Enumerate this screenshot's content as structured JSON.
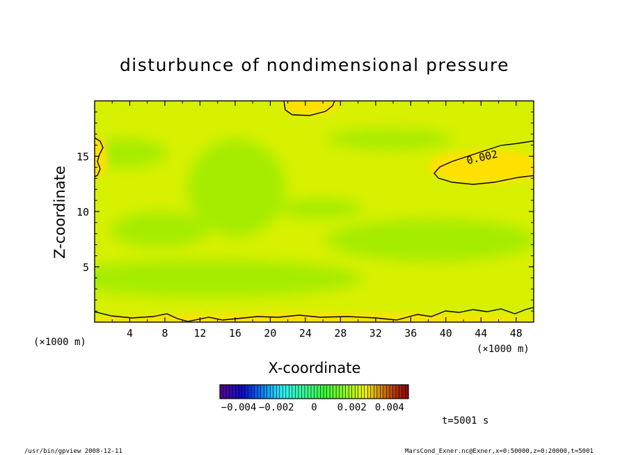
{
  "chart_data": {
    "type": "heatmap",
    "title": "disturbunce of nondimensional pressure",
    "xlabel": "X-coordinate",
    "ylabel": "Z-coordinate",
    "x_unit": "(×1000 m)",
    "y_unit": "(×1000 m)",
    "xlim": [
      0,
      50
    ],
    "ylim": [
      0,
      20
    ],
    "x_ticks": [
      "4",
      "8",
      "12",
      "16",
      "20",
      "24",
      "28",
      "32",
      "36",
      "40",
      "44",
      "48"
    ],
    "y_ticks": [
      "5",
      "10",
      "15"
    ],
    "contour_label": "0.002",
    "colorbar": {
      "range": [
        -0.005,
        0.005
      ],
      "labels": [
        "−0.004",
        "−0.002",
        "0",
        "0.002",
        "0.004"
      ]
    },
    "time_label": "t=5001 s",
    "grid": false
  },
  "footer": {
    "left": "/usr/bin/gpview  2008-12-11",
    "right": "MarsCond_Exner.nc@Exner,x=0:50000,z=0:20000,t=5001"
  },
  "colors": {
    "field_base": "#d6f000",
    "field_green": "#a6ec00",
    "field_yellow": "#ffe000",
    "contour_line": "#000000"
  }
}
